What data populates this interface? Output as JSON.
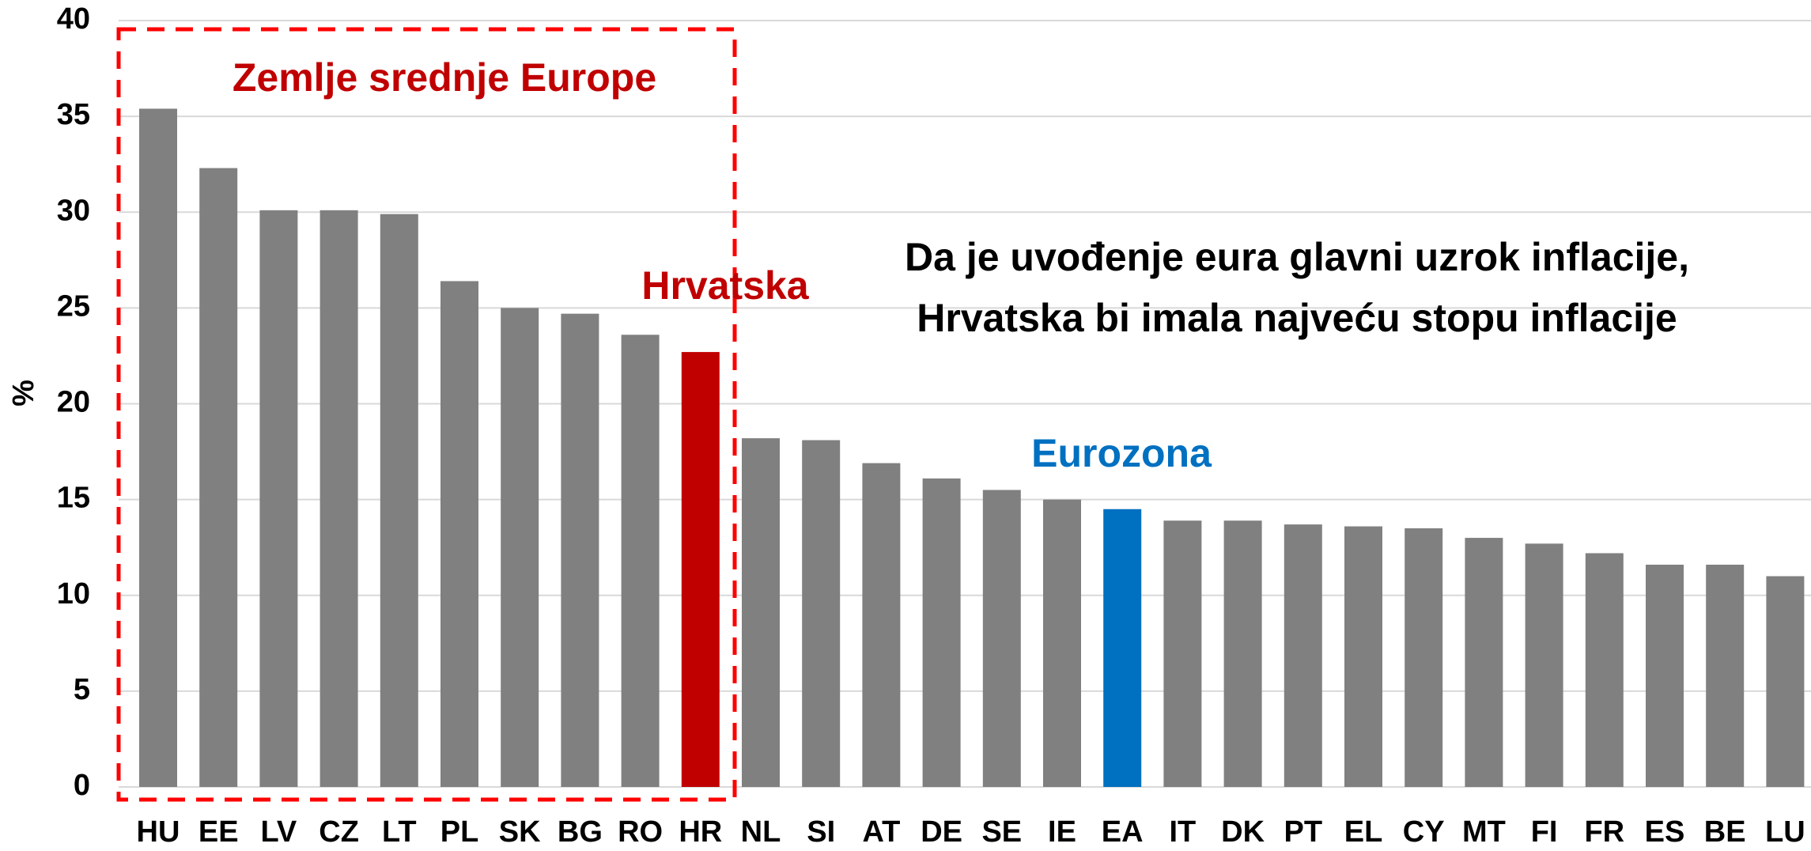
{
  "chart_data": {
    "type": "bar",
    "ylabel": "%",
    "categories": [
      "HU",
      "EE",
      "LV",
      "CZ",
      "LT",
      "PL",
      "SK",
      "BG",
      "RO",
      "HR",
      "NL",
      "SI",
      "AT",
      "DE",
      "SE",
      "IE",
      "EA",
      "IT",
      "DK",
      "PT",
      "EL",
      "CY",
      "MT",
      "FI",
      "FR",
      "ES",
      "BE",
      "LU"
    ],
    "values": [
      35.4,
      32.3,
      30.1,
      30.1,
      29.9,
      26.4,
      25.0,
      24.7,
      23.6,
      22.7,
      18.2,
      18.1,
      16.9,
      16.1,
      15.5,
      15.0,
      14.5,
      13.9,
      13.9,
      13.7,
      13.6,
      13.5,
      13.0,
      12.7,
      12.2,
      11.6,
      11.6,
      11.0
    ],
    "colors": [
      "#808080",
      "#808080",
      "#808080",
      "#808080",
      "#808080",
      "#808080",
      "#808080",
      "#808080",
      "#808080",
      "#c00000",
      "#808080",
      "#808080",
      "#808080",
      "#808080",
      "#808080",
      "#808080",
      "#0070c0",
      "#808080",
      "#808080",
      "#808080",
      "#808080",
      "#808080",
      "#808080",
      "#808080",
      "#808080",
      "#808080",
      "#808080",
      "#808080"
    ],
    "ylim": [
      0,
      40
    ],
    "yticks": [
      0,
      5,
      10,
      15,
      20,
      25,
      30,
      35,
      40
    ],
    "grid": true,
    "annotations": [
      {
        "text": "Zemlje srednje Europe",
        "color": "#c00000"
      },
      {
        "text": "Hrvatska",
        "color": "#c00000"
      },
      {
        "text": "Da je uvođenje eura glavni uzrok inflacije,",
        "color": "#000000"
      },
      {
        "text": "Hrvatska bi imala najveću stopu inflacije",
        "color": "#000000"
      },
      {
        "text": "Eurozona",
        "color": "#0070c0"
      }
    ]
  }
}
